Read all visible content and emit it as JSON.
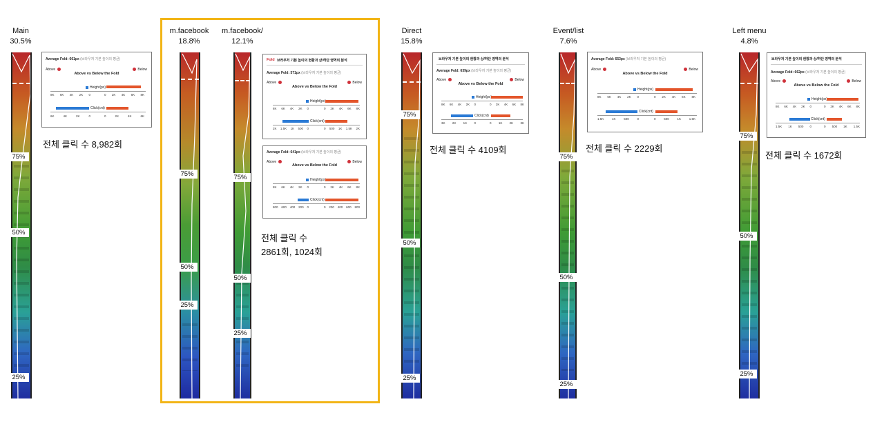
{
  "colors": {
    "highlight": "#f2b517",
    "below": "#e3552b",
    "above": "#2a7ad5",
    "fold_label": "#d0313a"
  },
  "columns": [
    {
      "name": "Main",
      "pct": "30.5%",
      "markers": [
        "75%",
        "50%",
        "25%"
      ]
    },
    {
      "name": "m.facebook",
      "pct": "18.8%",
      "markers": [
        "75%",
        "50%",
        "25%"
      ]
    },
    {
      "name": "m.facebook/",
      "pct": "12.1%",
      "markers": [
        "75%",
        "50%",
        "25%"
      ]
    },
    {
      "name": "Direct",
      "pct": "15.8%",
      "markers": [
        "75%",
        "50%",
        "25%"
      ]
    },
    {
      "name": "Event/list",
      "pct": "7.6%",
      "markers": [
        "75%",
        "50%",
        "25%"
      ]
    },
    {
      "name": "Left menu",
      "pct": "4.8%",
      "markers": [
        "75%",
        "50%",
        "25%"
      ]
    }
  ],
  "panels": [
    {
      "fold_label": "",
      "header": "",
      "avg": "Average Fold: 661px",
      "avg_note": "(브라우저 기본 높이의 평균)",
      "above": "Above",
      "below": "Below",
      "title": "Above vs Below the Fold",
      "height_label": "Height(px)",
      "click_label": "Click(cnt)",
      "height_left_ticks": [
        "8K",
        "6K",
        "4K",
        "2K",
        "0"
      ],
      "height_right_ticks": [
        "0",
        "2K",
        "4K",
        "6K",
        "8K"
      ],
      "click_left_ticks": [
        "6K",
        "4K",
        "2K",
        "0"
      ],
      "click_right_ticks": [
        "0",
        "2K",
        "4K",
        "6K"
      ]
    },
    {
      "fold_label": "Fold",
      "header": "브라우저 기본 높이의 현황과 상/하단 영역의 분석",
      "avg": "Average Fold: 571px",
      "avg_note": "(브라우저 기본 높이의 평균)",
      "above": "Above",
      "below": "Below",
      "title": "Above vs Below the Fold",
      "height_label": "Height(px)",
      "click_label": "Click(cnt)",
      "height_left_ticks": [
        "8K",
        "6K",
        "4K",
        "2K",
        "0"
      ],
      "height_right_ticks": [
        "0",
        "2K",
        "4K",
        "6K",
        "8K"
      ],
      "click_left_ticks": [
        "2K",
        "1.5K",
        "1K",
        "500",
        "0"
      ],
      "click_right_ticks": [
        "0",
        "500",
        "1K",
        "1.5K",
        "2K"
      ]
    },
    {
      "fold_label": "",
      "header": "",
      "avg": "Average Fold: 641px",
      "avg_note": "(브라우저 기본 높이의 평균)",
      "above": "Above",
      "below": "Below",
      "title": "Above vs Below the Fold",
      "height_label": "Height(px)",
      "click_label": "Click(cnt)",
      "height_left_ticks": [
        "8K",
        "6K",
        "4K",
        "2K",
        "0"
      ],
      "height_right_ticks": [
        "0",
        "2K",
        "4K",
        "6K",
        "8K"
      ],
      "click_left_ticks": [
        "800",
        "600",
        "400",
        "200",
        "0"
      ],
      "click_right_ticks": [
        "0",
        "200",
        "400",
        "600",
        "800"
      ]
    },
    {
      "fold_label": "",
      "header": "브라우저 기본 높이의 현황과 상/하단 영역의 분석",
      "avg": "Average Fold: 639px",
      "avg_note": "(브라우저 기본 높이의 평균)",
      "above": "Above",
      "below": "Below",
      "title": "Above vs Below the Fold",
      "height_label": "Height(px)",
      "click_label": "Click(cnt)",
      "height_left_ticks": [
        "8K",
        "6K",
        "4K",
        "2K",
        "0"
      ],
      "height_right_ticks": [
        "0",
        "2K",
        "4K",
        "6K",
        "8K"
      ],
      "click_left_ticks": [
        "3K",
        "2K",
        "1K",
        "0"
      ],
      "click_right_ticks": [
        "0",
        "1K",
        "2K",
        "3K"
      ]
    },
    {
      "fold_label": "",
      "header": "",
      "avg": "Average Fold: 653px",
      "avg_note": "(브라우저 기본 높이의 평균)",
      "above": "Above",
      "below": "Below",
      "title": "Above vs Below the Fold",
      "height_label": "Height(px)",
      "click_label": "Click(cnt)",
      "height_left_ticks": [
        "8K",
        "6K",
        "4K",
        "2K",
        "0"
      ],
      "height_right_ticks": [
        "0",
        "2K",
        "4K",
        "6K",
        "8K"
      ],
      "click_left_ticks": [
        "1.5K",
        "1K",
        "500",
        "0"
      ],
      "click_right_ticks": [
        "0",
        "500",
        "1K",
        "1.5K"
      ]
    },
    {
      "fold_label": "",
      "header": "브라우저 기본 높이의 현황과 상/하단 영역의 분석",
      "avg": "Average Fold: 662px",
      "avg_note": "(브라우저 기본 높이의 평균)",
      "above": "Above",
      "below": "Below",
      "title": "Above vs Below the Fold",
      "height_label": "Height(px)",
      "click_label": "Click(cnt)",
      "height_left_ticks": [
        "8K",
        "6K",
        "4K",
        "2K",
        "0"
      ],
      "height_right_ticks": [
        "0",
        "2K",
        "4K",
        "6K",
        "8K"
      ],
      "click_left_ticks": [
        "1.5K",
        "1K",
        "500",
        "0"
      ],
      "click_right_ticks": [
        "0",
        "500",
        "1K",
        "1.5K"
      ]
    }
  ],
  "totals": [
    {
      "line1": "전체 클릭 수 8,982회",
      "line2": ""
    },
    {
      "line1": "전체 클릭 수",
      "line2": "2861회, 1024회"
    },
    {
      "line1": "전체 클릭 수 4109회",
      "line2": ""
    },
    {
      "line1": "전체 클릭 수 2229회",
      "line2": ""
    },
    {
      "line1": "전체 클릭 수 1672회",
      "line2": ""
    }
  ],
  "chart_data": [
    {
      "type": "heatmap",
      "title": "Main",
      "share": 30.5,
      "total_clicks": 8982,
      "average_fold_px": 661,
      "scroll_markers": [
        "75%",
        "50%",
        "25%"
      ]
    },
    {
      "type": "heatmap",
      "title": "m.facebook",
      "share": 18.8,
      "total_clicks": 2861,
      "average_fold_px": 571,
      "scroll_markers": [
        "75%",
        "50%",
        "25%"
      ]
    },
    {
      "type": "heatmap",
      "title": "m.facebook/",
      "share": 12.1,
      "total_clicks": 1024,
      "average_fold_px": 641,
      "scroll_markers": [
        "75%",
        "50%",
        "25%"
      ]
    },
    {
      "type": "heatmap",
      "title": "Direct",
      "share": 15.8,
      "total_clicks": 4109,
      "average_fold_px": 639,
      "scroll_markers": [
        "75%",
        "50%",
        "25%"
      ]
    },
    {
      "type": "heatmap",
      "title": "Event/list",
      "share": 7.6,
      "total_clicks": 2229,
      "average_fold_px": 653,
      "scroll_markers": [
        "75%",
        "50%",
        "25%"
      ]
    },
    {
      "type": "heatmap",
      "title": "Left menu",
      "share": 4.8,
      "total_clicks": 1672,
      "average_fold_px": 662,
      "scroll_markers": [
        "75%",
        "50%",
        "25%"
      ]
    }
  ]
}
